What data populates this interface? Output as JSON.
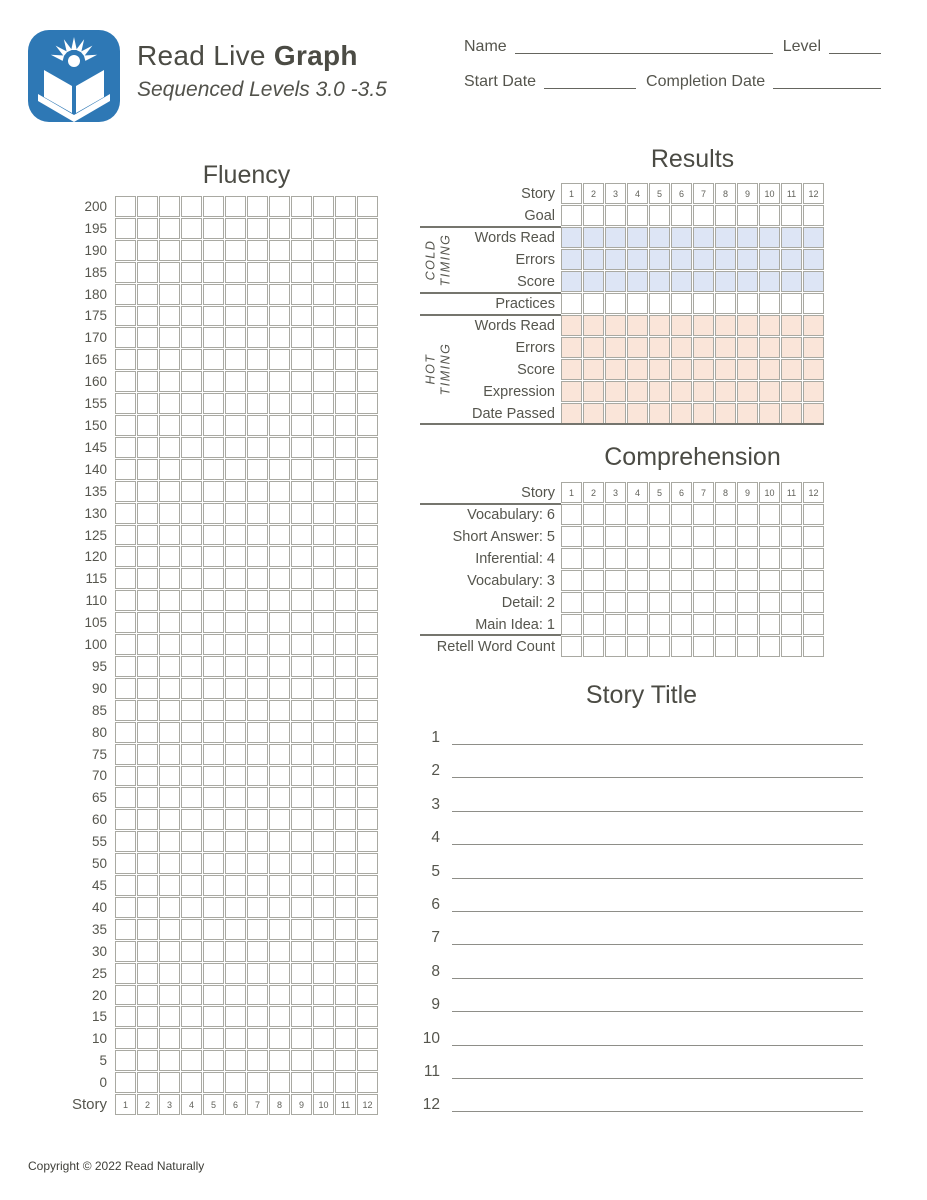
{
  "colors": {
    "accent_blue": "#2e78b5",
    "cold_fill": "#dde5f5",
    "hot_fill": "#fae5d9",
    "grid_line": "#a9a9a2"
  },
  "header": {
    "title_regular": "Read Live ",
    "title_bold": "Graph",
    "subtitle": "Sequenced Levels 3.0 -3.5",
    "fields": {
      "name_label": "Name",
      "level_label": "Level",
      "start_date_label": "Start Date",
      "completion_date_label": "Completion Date"
    }
  },
  "fluency": {
    "title": "Fluency",
    "x_axis_label": "Story",
    "y_labels": [
      200,
      195,
      190,
      185,
      180,
      175,
      170,
      165,
      160,
      155,
      150,
      145,
      140,
      135,
      130,
      125,
      120,
      115,
      110,
      105,
      100,
      95,
      90,
      85,
      80,
      75,
      70,
      65,
      60,
      55,
      50,
      45,
      40,
      35,
      30,
      25,
      20,
      15,
      10,
      5,
      0
    ],
    "stories": [
      1,
      2,
      3,
      4,
      5,
      6,
      7,
      8,
      9,
      10,
      11,
      12
    ]
  },
  "results": {
    "title": "Results",
    "story_label": "Story",
    "stories": [
      1,
      2,
      3,
      4,
      5,
      6,
      7,
      8,
      9,
      10,
      11,
      12
    ],
    "rows": [
      {
        "label": "Goal",
        "fill": "none"
      },
      {
        "label": "Words Read",
        "fill": "cold"
      },
      {
        "label": "Errors",
        "fill": "cold"
      },
      {
        "label": "Score",
        "fill": "cold"
      },
      {
        "label": "Practices",
        "fill": "none"
      },
      {
        "label": "Words Read",
        "fill": "hot"
      },
      {
        "label": "Errors",
        "fill": "hot"
      },
      {
        "label": "Score",
        "fill": "hot"
      },
      {
        "label": "Expression",
        "fill": "hot"
      },
      {
        "label": "Date Passed",
        "fill": "hot"
      }
    ],
    "groups": {
      "cold": [
        "COLD",
        "TIMING"
      ],
      "hot": [
        "HOT",
        "TIMING"
      ]
    }
  },
  "comprehension": {
    "title": "Comprehension",
    "story_label": "Story",
    "stories": [
      1,
      2,
      3,
      4,
      5,
      6,
      7,
      8,
      9,
      10,
      11,
      12
    ],
    "rows": [
      "Vocabulary: 6",
      "Short Answer: 5",
      "Inferential: 4",
      "Vocabulary: 3",
      "Detail: 2",
      "Main Idea: 1",
      "Retell Word Count"
    ]
  },
  "story_title": {
    "title": "Story Title",
    "numbers": [
      1,
      2,
      3,
      4,
      5,
      6,
      7,
      8,
      9,
      10,
      11,
      12
    ]
  },
  "footer": {
    "copyright": "Copyright © 2022 Read Naturally"
  }
}
